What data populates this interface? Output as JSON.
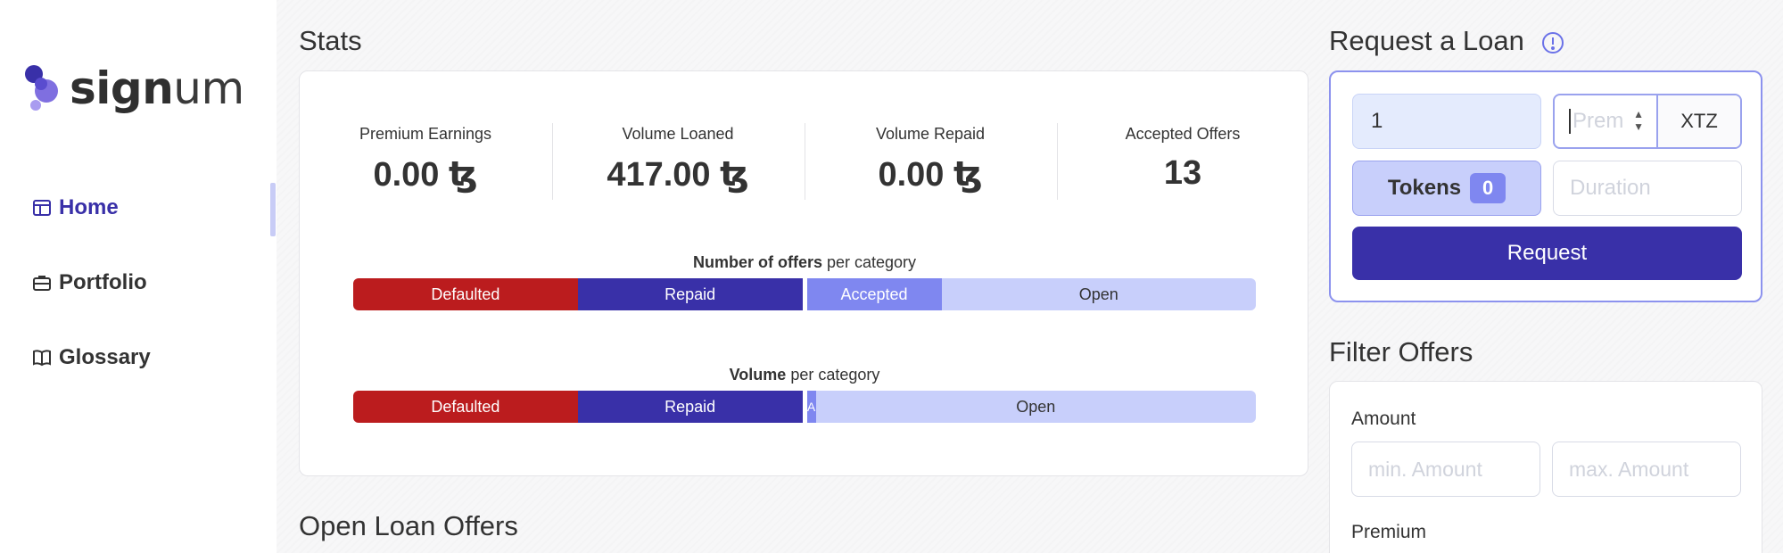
{
  "brand": {
    "name_bold": "sign",
    "name_light": "um",
    "accent_color": "#3930a8",
    "logo_color": "#6b5cd6"
  },
  "nav": {
    "items": [
      {
        "label": "Home",
        "icon": "layout-icon",
        "active": true
      },
      {
        "label": "Portfolio",
        "icon": "briefcase-icon",
        "active": false
      },
      {
        "label": "Glossary",
        "icon": "book-icon",
        "active": false
      }
    ]
  },
  "stats": {
    "title": "Stats",
    "cards": [
      {
        "label": "Premium Earnings",
        "value": "0.00 ꜩ"
      },
      {
        "label": "Volume Loaned",
        "value": "417.00 ꜩ"
      },
      {
        "label": "Volume Repaid",
        "value": "0.00 ꜩ"
      },
      {
        "label": "Accepted Offers",
        "value": "13"
      }
    ],
    "offers_chart": {
      "caption_bold": "Number of offers",
      "caption_rest": " per category",
      "segments": [
        {
          "label": "Defaulted",
          "share": 0.25
        },
        {
          "label": "Repaid",
          "share": 0.25
        },
        {
          "label": "Accepted",
          "share": 0.15
        },
        {
          "label": "Open",
          "share": 0.35
        }
      ]
    },
    "volume_chart": {
      "caption_bold": "Volume",
      "caption_rest": " per category",
      "segments": [
        {
          "label": "Defaulted",
          "share": 0.25
        },
        {
          "label": "Repaid",
          "share": 0.25
        },
        {
          "label": "A",
          "share": 0.01
        },
        {
          "label": "Open",
          "share": 0.49
        }
      ]
    },
    "colors": {
      "defaulted": "#bb1c1e",
      "repaid": "#3930a8",
      "accepted": "#7f87f0",
      "open": "#c8cffb"
    }
  },
  "open_offers": {
    "title": "Open Loan Offers"
  },
  "request_loan": {
    "title": "Request a Loan",
    "info_icon": "info-circle-icon",
    "amount_value": "1",
    "premium_placeholder": "Prem",
    "currency": "XTZ",
    "tokens_label": "Tokens",
    "tokens_count": "0",
    "duration_placeholder": "Duration",
    "request_label": "Request"
  },
  "filter": {
    "title": "Filter Offers",
    "amount_label": "Amount",
    "min_amount_placeholder": "min. Amount",
    "max_amount_placeholder": "max. Amount",
    "premium_label": "Premium"
  }
}
